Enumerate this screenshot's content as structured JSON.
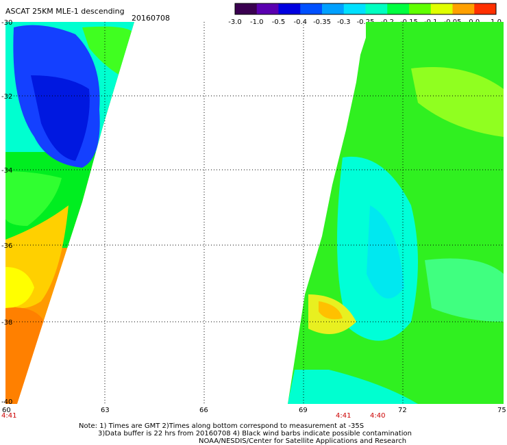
{
  "header": {
    "title": "ASCAT 25KM MLE-1 descending",
    "date": "20160708"
  },
  "colorbar": {
    "tick_labels": [
      "-3.0",
      "-1.0",
      "-0.5",
      "-0.4",
      "-0.35",
      "-0.3",
      "-0.25",
      "-0.2",
      "-0.15",
      "-0.1",
      "-0.05",
      "0.0",
      "1.0"
    ],
    "colors": [
      "#3a0050",
      "#5a00b0",
      "#0000e0",
      "#0050ff",
      "#00a0ff",
      "#00e0ff",
      "#00ffc0",
      "#00ff40",
      "#60ff00",
      "#e0ff00",
      "#ffa000",
      "#ff3000"
    ]
  },
  "map": {
    "lat_labels": [
      "-30",
      "-32",
      "-34",
      "-36",
      "-38",
      "-40"
    ],
    "lon_labels": [
      "60",
      "63",
      "66",
      "69",
      "72",
      "75"
    ],
    "time_labels": [
      "4:41",
      "4:41",
      "4:40"
    ]
  },
  "notes": {
    "line1": "Note: 1) Times are GMT 2)Times along bottom correspond to measurement at -35S",
    "line2": "3)Data buffer is 22 hrs from 20160708 4) Black wind barbs indicate possible contamination",
    "line3": "NOAA/NESDIS/Center for Satellite Applications and Research"
  }
}
